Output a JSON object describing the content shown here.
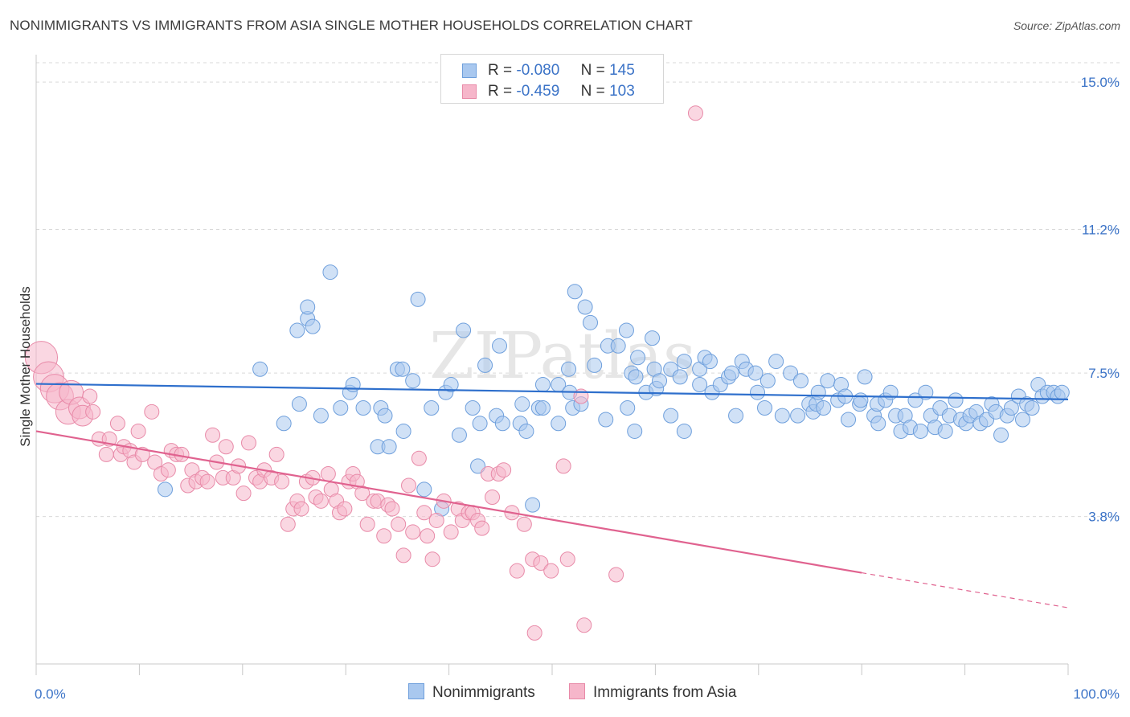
{
  "title": "NONIMMIGRANTS VS IMMIGRANTS FROM ASIA SINGLE MOTHER HOUSEHOLDS CORRELATION CHART",
  "source": "Source: ZipAtlas.com",
  "watermark": "ZIPatlas",
  "legend": {
    "rows": [
      {
        "r_label": "R =",
        "r_value": "-0.080",
        "n_label": "N =",
        "n_value": "145"
      },
      {
        "r_label": "R =",
        "r_value": "-0.459",
        "n_label": "N =",
        "n_value": "103"
      }
    ]
  },
  "bottom_legend": {
    "series1": "Nonimmigrants",
    "series2": "Immigrants from Asia"
  },
  "colors": {
    "blue_fill": "#a9c8ef",
    "blue_stroke": "#6e9fdc",
    "blue_line": "#2e6fcc",
    "pink_fill": "#f6b6ca",
    "pink_stroke": "#e88aa8",
    "pink_line": "#e0628f",
    "tick_text": "#3b73c7",
    "grid": "#d9d9d9"
  },
  "chart_data": {
    "type": "scatter",
    "title": "NONIMMIGRANTS VS IMMIGRANTS FROM ASIA SINGLE MOTHER HOUSEHOLDS CORRELATION CHART",
    "xlabel": "",
    "ylabel": "Single Mother Households",
    "xlim": [
      0,
      100
    ],
    "ylim": [
      0,
      15.5
    ],
    "x_tick_labels": [
      "0.0%",
      "100.0%"
    ],
    "y_ticks": [
      3.8,
      7.5,
      11.2,
      15.0
    ],
    "y_tick_labels": [
      "3.8%",
      "7.5%",
      "11.2%",
      "15.0%"
    ],
    "series": [
      {
        "name": "Nonimmigrants",
        "R": -0.08,
        "N": 145,
        "trend": {
          "x0": 0,
          "y0": 7.22,
          "x1": 100,
          "y1": 6.82
        },
        "points": [
          [
            12.5,
            4.5
          ],
          [
            21.7,
            7.6
          ],
          [
            24,
            6.2
          ],
          [
            25.3,
            8.6
          ],
          [
            25.5,
            6.7
          ],
          [
            26.3,
            8.9
          ],
          [
            26.3,
            9.2
          ],
          [
            26.8,
            8.7
          ],
          [
            27.6,
            6.4
          ],
          [
            28.5,
            10.1
          ],
          [
            29.5,
            6.6
          ],
          [
            30.4,
            7.0
          ],
          [
            30.7,
            7.2
          ],
          [
            31.7,
            6.6
          ],
          [
            33.1,
            5.6
          ],
          [
            33.4,
            6.6
          ],
          [
            33.8,
            6.4
          ],
          [
            34.2,
            5.6
          ],
          [
            35,
            7.6
          ],
          [
            35.5,
            7.6
          ],
          [
            35.6,
            6.0
          ],
          [
            36.5,
            7.3
          ],
          [
            37,
            9.4
          ],
          [
            37.6,
            4.5
          ],
          [
            38.3,
            6.6
          ],
          [
            39.3,
            4.0
          ],
          [
            39.7,
            7.0
          ],
          [
            40.2,
            7.2
          ],
          [
            41,
            5.9
          ],
          [
            41.4,
            8.6
          ],
          [
            42.3,
            6.6
          ],
          [
            42.8,
            5.1
          ],
          [
            43,
            6.2
          ],
          [
            43.5,
            7.7
          ],
          [
            44.6,
            6.4
          ],
          [
            44.9,
            8.2
          ],
          [
            45.2,
            6.2
          ],
          [
            46.9,
            6.2
          ],
          [
            47.1,
            6.7
          ],
          [
            47.5,
            6.0
          ],
          [
            48.1,
            4.1
          ],
          [
            48.7,
            6.6
          ],
          [
            49.1,
            7.2
          ],
          [
            49.1,
            6.6
          ],
          [
            50.6,
            6.2
          ],
          [
            50.6,
            7.2
          ],
          [
            51.6,
            7.6
          ],
          [
            51.7,
            7.0
          ],
          [
            52,
            6.6
          ],
          [
            52.2,
            9.6
          ],
          [
            52.8,
            6.7
          ],
          [
            53.2,
            9.2
          ],
          [
            53.7,
            8.8
          ],
          [
            54.1,
            7.7
          ],
          [
            55.2,
            6.3
          ],
          [
            55.4,
            8.2
          ],
          [
            56.4,
            8.2
          ],
          [
            57.2,
            8.6
          ],
          [
            57.3,
            6.6
          ],
          [
            57.7,
            7.5
          ],
          [
            58,
            6.0
          ],
          [
            58.1,
            7.4
          ],
          [
            58.3,
            7.9
          ],
          [
            59.1,
            7.0
          ],
          [
            59.7,
            8.4
          ],
          [
            59.9,
            7.6
          ],
          [
            60.1,
            7.1
          ],
          [
            60.4,
            7.3
          ],
          [
            61.5,
            7.6
          ],
          [
            61.5,
            6.4
          ],
          [
            62.4,
            7.4
          ],
          [
            62.8,
            7.8
          ],
          [
            62.8,
            6.0
          ],
          [
            64.3,
            7.2
          ],
          [
            64.3,
            7.6
          ],
          [
            64.8,
            7.9
          ],
          [
            65.3,
            7.8
          ],
          [
            65.5,
            7.0
          ],
          [
            66.3,
            7.2
          ],
          [
            67.1,
            7.4
          ],
          [
            67.4,
            7.5
          ],
          [
            67.8,
            6.4
          ],
          [
            68.4,
            7.8
          ],
          [
            68.8,
            7.6
          ],
          [
            69.7,
            7.5
          ],
          [
            69.9,
            7.0
          ],
          [
            70.6,
            6.6
          ],
          [
            70.9,
            7.3
          ],
          [
            71.7,
            7.8
          ],
          [
            72.3,
            6.4
          ],
          [
            73.1,
            7.5
          ],
          [
            73.8,
            6.4
          ],
          [
            74.1,
            7.3
          ],
          [
            74.9,
            6.7
          ],
          [
            75.3,
            6.5
          ],
          [
            75.6,
            6.7
          ],
          [
            75.8,
            7.0
          ],
          [
            76.3,
            6.6
          ],
          [
            76.7,
            7.3
          ],
          [
            77.7,
            6.8
          ],
          [
            78,
            7.2
          ],
          [
            78.4,
            6.9
          ],
          [
            78.7,
            6.3
          ],
          [
            79.8,
            6.7
          ],
          [
            79.9,
            6.8
          ],
          [
            80.3,
            7.4
          ],
          [
            81.2,
            6.4
          ],
          [
            81.5,
            6.7
          ],
          [
            81.6,
            6.2
          ],
          [
            82.3,
            6.8
          ],
          [
            82.8,
            7.0
          ],
          [
            83.3,
            6.4
          ],
          [
            83.8,
            6.0
          ],
          [
            84.2,
            6.4
          ],
          [
            84.7,
            6.1
          ],
          [
            85.2,
            6.8
          ],
          [
            85.7,
            6.0
          ],
          [
            86.2,
            7.0
          ],
          [
            86.7,
            6.4
          ],
          [
            87.1,
            6.1
          ],
          [
            87.6,
            6.6
          ],
          [
            88.1,
            6.0
          ],
          [
            88.5,
            6.4
          ],
          [
            89.1,
            6.8
          ],
          [
            89.6,
            6.3
          ],
          [
            90.1,
            6.2
          ],
          [
            90.5,
            6.4
          ],
          [
            91.1,
            6.5
          ],
          [
            91.5,
            6.2
          ],
          [
            92.1,
            6.3
          ],
          [
            92.6,
            6.7
          ],
          [
            93,
            6.5
          ],
          [
            93.5,
            5.9
          ],
          [
            94.1,
            6.4
          ],
          [
            94.5,
            6.6
          ],
          [
            95.2,
            6.9
          ],
          [
            95.6,
            6.3
          ],
          [
            96,
            6.7
          ],
          [
            96.5,
            6.6
          ],
          [
            97.1,
            7.2
          ],
          [
            97.5,
            6.9
          ],
          [
            98,
            7.0
          ],
          [
            98.6,
            7.0
          ],
          [
            99,
            6.9
          ],
          [
            99.4,
            7.0
          ]
        ]
      },
      {
        "name": "Immigrants from Asia",
        "R": -0.459,
        "N": 103,
        "trend": {
          "x0": 0,
          "y0": 6.0,
          "x1": 80,
          "y1": 2.35,
          "dash_to_x": 100,
          "dash_to_y": 1.45
        },
        "points": [
          [
            0.5,
            7.9
          ],
          [
            1.2,
            7.4
          ],
          [
            1.8,
            7.1
          ],
          [
            2.3,
            6.9
          ],
          [
            3.1,
            6.5
          ],
          [
            3.4,
            7.0
          ],
          [
            4.2,
            6.6
          ],
          [
            4.5,
            6.4
          ],
          [
            5.2,
            6.9
          ],
          [
            5.5,
            6.5
          ],
          [
            6.1,
            5.8
          ],
          [
            6.8,
            5.4
          ],
          [
            7.1,
            5.8
          ],
          [
            7.9,
            6.2
          ],
          [
            8.2,
            5.4
          ],
          [
            8.5,
            5.6
          ],
          [
            9.1,
            5.5
          ],
          [
            9.5,
            5.2
          ],
          [
            9.9,
            6.0
          ],
          [
            10.3,
            5.4
          ],
          [
            11.2,
            6.5
          ],
          [
            11.5,
            5.2
          ],
          [
            12.1,
            4.9
          ],
          [
            12.8,
            5.0
          ],
          [
            13.1,
            5.5
          ],
          [
            13.6,
            5.4
          ],
          [
            14.1,
            5.4
          ],
          [
            14.7,
            4.6
          ],
          [
            15.1,
            5.0
          ],
          [
            15.5,
            4.7
          ],
          [
            16.1,
            4.8
          ],
          [
            16.6,
            4.7
          ],
          [
            17.1,
            5.9
          ],
          [
            17.5,
            5.2
          ],
          [
            18.1,
            4.8
          ],
          [
            18.4,
            5.6
          ],
          [
            19.1,
            4.8
          ],
          [
            19.6,
            5.1
          ],
          [
            20.1,
            4.4
          ],
          [
            20.6,
            5.7
          ],
          [
            21.3,
            4.8
          ],
          [
            21.7,
            4.7
          ],
          [
            22.1,
            5.0
          ],
          [
            22.8,
            4.8
          ],
          [
            23.3,
            5.4
          ],
          [
            23.8,
            4.7
          ],
          [
            24.4,
            3.6
          ],
          [
            24.9,
            4.0
          ],
          [
            25.3,
            4.2
          ],
          [
            25.7,
            4.0
          ],
          [
            26.2,
            4.7
          ],
          [
            26.8,
            4.8
          ],
          [
            27.1,
            4.3
          ],
          [
            27.6,
            4.2
          ],
          [
            28.3,
            4.9
          ],
          [
            28.6,
            4.5
          ],
          [
            29.1,
            4.2
          ],
          [
            29.4,
            3.9
          ],
          [
            29.9,
            4.0
          ],
          [
            30.3,
            4.7
          ],
          [
            30.7,
            4.9
          ],
          [
            31.1,
            4.7
          ],
          [
            31.6,
            4.4
          ],
          [
            32.1,
            3.6
          ],
          [
            32.7,
            4.2
          ],
          [
            33.1,
            4.2
          ],
          [
            33.7,
            3.3
          ],
          [
            34.1,
            4.1
          ],
          [
            34.5,
            4.0
          ],
          [
            35.1,
            3.6
          ],
          [
            35.6,
            2.8
          ],
          [
            36.1,
            4.6
          ],
          [
            36.5,
            3.4
          ],
          [
            37.1,
            5.3
          ],
          [
            37.6,
            3.9
          ],
          [
            37.9,
            3.3
          ],
          [
            38.4,
            2.7
          ],
          [
            38.8,
            3.7
          ],
          [
            39.5,
            4.2
          ],
          [
            40.2,
            3.4
          ],
          [
            40.9,
            4.0
          ],
          [
            41.3,
            3.7
          ],
          [
            41.9,
            3.9
          ],
          [
            42.3,
            3.9
          ],
          [
            42.8,
            3.7
          ],
          [
            43.2,
            3.5
          ],
          [
            43.8,
            4.9
          ],
          [
            44.2,
            4.3
          ],
          [
            44.8,
            4.9
          ],
          [
            45.3,
            5.0
          ],
          [
            46.1,
            3.9
          ],
          [
            46.6,
            2.4
          ],
          [
            47.3,
            3.6
          ],
          [
            48.1,
            2.7
          ],
          [
            48.9,
            2.6
          ],
          [
            49.9,
            2.4
          ],
          [
            51.1,
            5.1
          ],
          [
            51.5,
            2.7
          ],
          [
            52.8,
            6.9
          ],
          [
            56.2,
            2.3
          ],
          [
            63.9,
            14.2
          ],
          [
            48.3,
            0.8
          ],
          [
            53.1,
            1.0
          ]
        ]
      }
    ]
  }
}
